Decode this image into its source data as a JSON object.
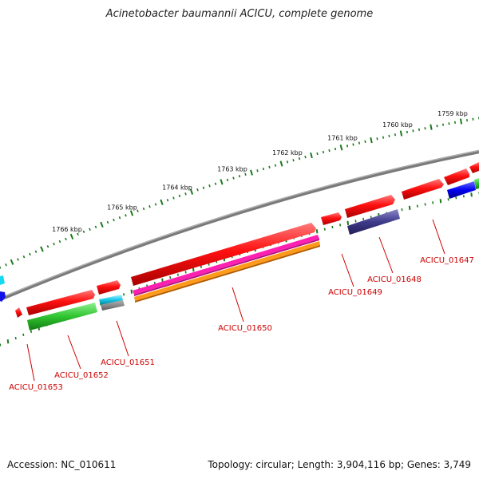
{
  "title": "Acinetobacter baumannii ACICU, complete genome",
  "footer": {
    "accession": "Accession: NC_010611",
    "summary": "Topology: circular; Length: 3,904,116 bp; Genes: 3,749"
  },
  "scale_labels": [
    "1759 kbp",
    "1760 kbp",
    "1761 kbp",
    "1762 kbp",
    "1763 kbp",
    "1764 kbp",
    "1765 kbp",
    "1766 kbp"
  ],
  "gene_labels": [
    "ACICU_01647",
    "ACICU_01648",
    "ACICU_01649",
    "ACICU_01650",
    "ACICU_01651",
    "ACICU_01652",
    "ACICU_01653"
  ],
  "colors": {
    "cds": "#ff0000",
    "label": "#cc0000",
    "backbone": "#808080",
    "tick": "#1a7a1a"
  }
}
